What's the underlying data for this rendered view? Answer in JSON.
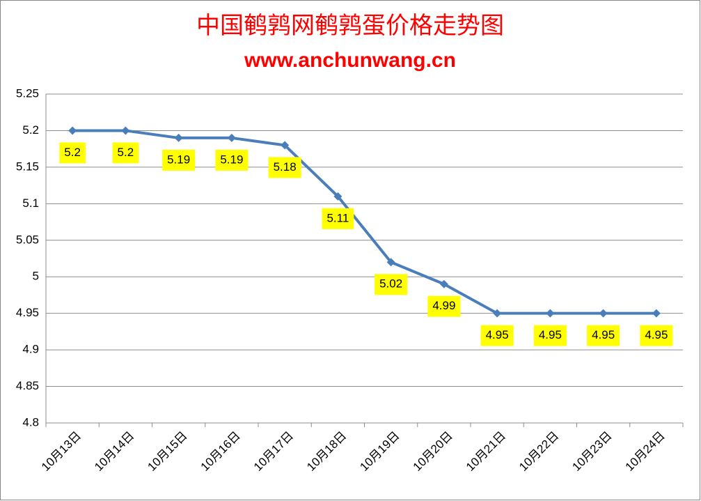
{
  "chart_data": {
    "type": "line",
    "title": "中国鹌鹑网鹌鹑蛋价格走势图",
    "subtitle": "www.anchunwang.cn",
    "categories": [
      "10月13日",
      "10月14日",
      "10月15日",
      "10月16日",
      "10月17日",
      "10月18日",
      "10月19日",
      "10月20日",
      "10月21日",
      "10月22日",
      "10月23日",
      "10月24日"
    ],
    "values": [
      5.2,
      5.2,
      5.19,
      5.19,
      5.18,
      5.11,
      5.02,
      4.99,
      4.95,
      4.95,
      4.95,
      4.95
    ],
    "color": "#4a7ebb",
    "label_color": "#ffff00",
    "ylim": [
      4.8,
      5.25
    ],
    "yticks": [
      4.8,
      4.85,
      4.9,
      4.95,
      5,
      5.05,
      5.1,
      5.15,
      5.2,
      5.25
    ],
    "grid": true
  }
}
